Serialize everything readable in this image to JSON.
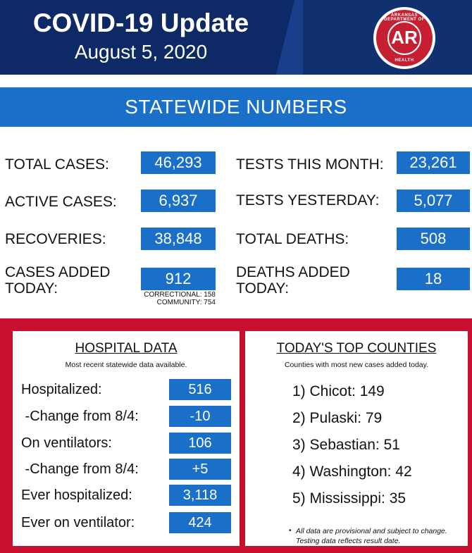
{
  "header": {
    "title": "COVID-19 Update",
    "date": "August 5, 2020",
    "seal": {
      "top_text": "ARKANSAS DEPARTMENT OF",
      "center": "AR",
      "bottom_text": "HEALTH"
    }
  },
  "statewide": {
    "heading": "STATEWIDE NUMBERS",
    "left": [
      {
        "label": "TOTAL CASES:",
        "value": "46,293"
      },
      {
        "label": "ACTIVE CASES:",
        "value": "6,937"
      },
      {
        "label": "RECOVERIES:",
        "value": "38,848"
      },
      {
        "label_line1": "CASES ADDED",
        "label_line2": "TODAY:",
        "value": "912",
        "note_line1": "CORRECTIONAL: 158",
        "note_line2": "COMMUNITY: 754"
      }
    ],
    "right": [
      {
        "label": "TESTS THIS MONTH:",
        "value": "23,261"
      },
      {
        "label": "TESTS YESTERDAY:",
        "value": "5,077"
      },
      {
        "label": "TOTAL DEATHS:",
        "value": "508"
      },
      {
        "label_line1": "DEATHS ADDED",
        "label_line2": "TODAY:",
        "value": "18"
      }
    ]
  },
  "hospital": {
    "title": "HOSPITAL DATA",
    "subtitle": "Most recent statewide data available.",
    "rows": [
      {
        "label": "Hospitalized:",
        "value": "516"
      },
      {
        "label": " -Change from 8/4:",
        "value": "-10"
      },
      {
        "label": "On ventilators:",
        "value": "106"
      },
      {
        "label": " -Change from 8/4:",
        "value": "+5"
      },
      {
        "label": "Ever hospitalized:",
        "value": "3,118"
      },
      {
        "label": "Ever on ventilator:",
        "value": "424"
      }
    ]
  },
  "counties": {
    "title": "TODAY'S TOP COUNTIES",
    "subtitle": "Counties with most new cases added today.",
    "items": [
      "1) Chicot: 149",
      "2) Pulaski: 79",
      "3) Sebastian: 51",
      "4) Washington: 42",
      "5) Mississippi: 35"
    ],
    "footnote_line1": "All data are provisional and subject to change.",
    "footnote_line2": "Testing data reflects result date."
  },
  "colors": {
    "navy": "#0d2a66",
    "blue": "#1a6fc9",
    "red": "#c8102e"
  }
}
